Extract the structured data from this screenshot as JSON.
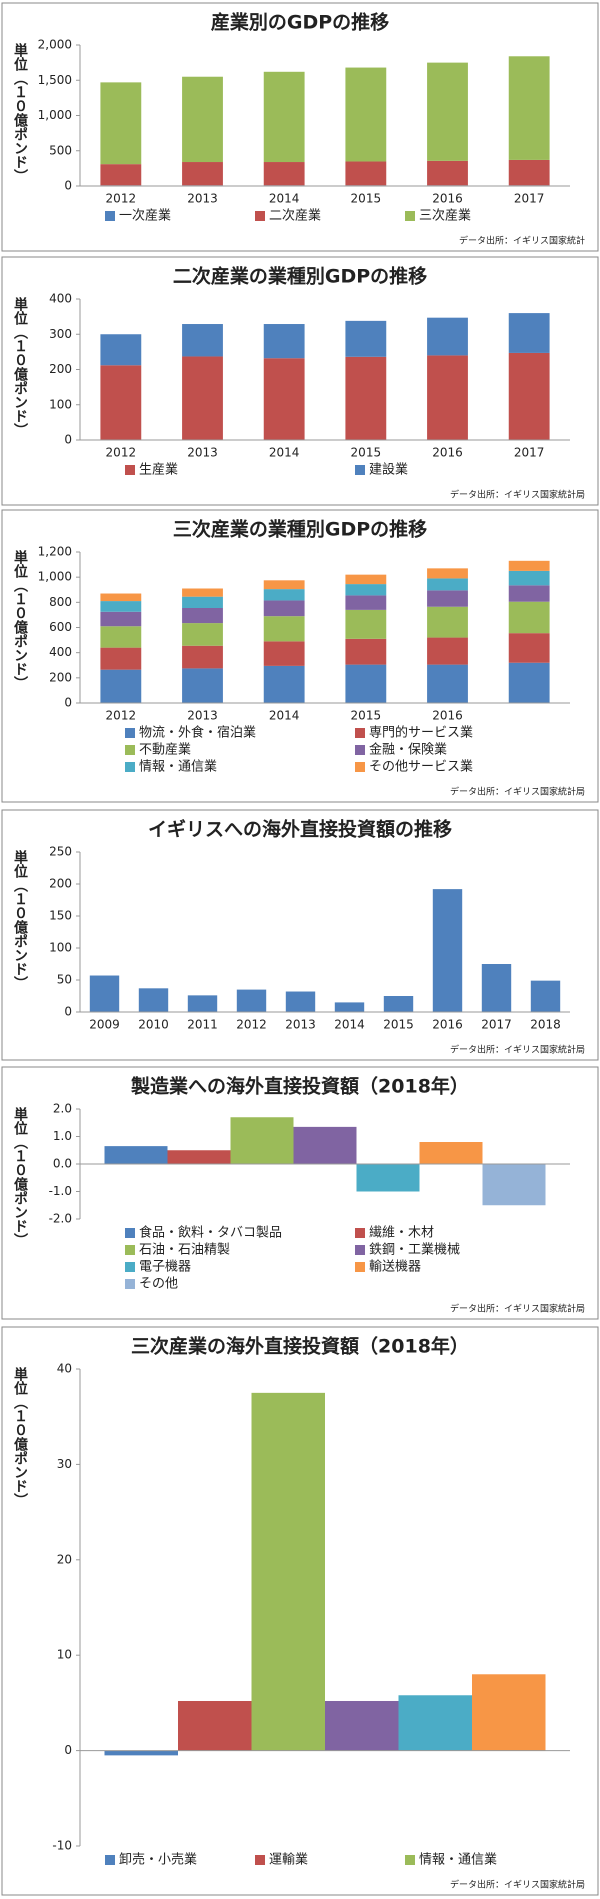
{
  "chart_data": [
    {
      "type": "bar",
      "stacked": true,
      "title": "産業別のGDPの推移",
      "y_label": "単位（１０億ポンド）",
      "source": "データ出所：イギリス国家統計",
      "categories": [
        "2012",
        "2013",
        "2014",
        "2015",
        "2016",
        "2017"
      ],
      "series": [
        {
          "name": "一次産業",
          "color": "#4f81bd",
          "values": [
            10,
            10,
            10,
            10,
            10,
            10
          ]
        },
        {
          "name": "二次産業",
          "color": "#c0504d",
          "values": [
            300,
            330,
            330,
            338,
            347,
            360
          ]
        },
        {
          "name": "三次産業",
          "color": "#9bbb59",
          "values": [
            1160,
            1210,
            1280,
            1332,
            1393,
            1470
          ]
        }
      ],
      "ylim": [
        0,
        2000
      ],
      "yticks": [
        0,
        500,
        {
          "value": 1000,
          "label": "1,000"
        },
        {
          "value": 1500,
          "label": "1,500"
        },
        {
          "value": 2000,
          "label": "2,000"
        }
      ],
      "grid": false,
      "legend": "bottom"
    },
    {
      "type": "bar",
      "stacked": true,
      "title": "二次産業の業種別GDPの推移",
      "y_label": "単位（１０億ポンド）",
      "source": "データ出所：イギリス国家統計局",
      "categories": [
        "2012",
        "2013",
        "2014",
        "2015",
        "2016",
        "2017"
      ],
      "series": [
        {
          "name": "生産業",
          "color": "#c0504d",
          "values": [
            212,
            237,
            232,
            236,
            240,
            247
          ]
        },
        {
          "name": "建設業",
          "color": "#4f81bd",
          "values": [
            88,
            92,
            97,
            102,
            107,
            113
          ]
        }
      ],
      "ylim": [
        0,
        400
      ],
      "yticks": [
        0,
        100,
        200,
        300,
        400
      ],
      "grid": false,
      "legend": "bottom"
    },
    {
      "type": "bar",
      "stacked": true,
      "title": "三次産業の業種別GDPの推移",
      "y_label": "単位（１０億ポンド）",
      "source": "データ出所：イギリス国家統計局",
      "categories": [
        "2012",
        "2013",
        "2014",
        "2015",
        "2016",
        null
      ],
      "series": [
        {
          "name": "物流・外食・宿泊業",
          "color": "#4f81bd",
          "values": [
            265,
            275,
            295,
            305,
            305,
            320
          ]
        },
        {
          "name": "専門的サービス業",
          "color": "#c0504d",
          "values": [
            175,
            180,
            195,
            205,
            215,
            235
          ]
        },
        {
          "name": "不動産業",
          "color": "#9bbb59",
          "values": [
            170,
            180,
            200,
            230,
            245,
            250
          ]
        },
        {
          "name": "金融・保険業",
          "color": "#8064a2",
          "values": [
            115,
            120,
            125,
            115,
            130,
            130
          ]
        },
        {
          "name": "情報・通信業",
          "color": "#4bacc6",
          "values": [
            85,
            90,
            90,
            90,
            95,
            115
          ]
        },
        {
          "name": "その他サービス業",
          "color": "#f79646",
          "values": [
            60,
            65,
            70,
            75,
            80,
            80
          ]
        }
      ],
      "ylim": [
        0,
        1200
      ],
      "yticks": [
        0,
        200,
        400,
        600,
        800,
        {
          "value": 1000,
          "label": "1,000"
        },
        {
          "value": 1200,
          "label": "1,200"
        }
      ],
      "grid": false,
      "legend": "bottom"
    },
    {
      "type": "bar",
      "title": "イギリスへの海外直接投資額の推移",
      "y_label": "単位（１０億ポンド）",
      "source": "データ出所：イギリス国家統計局",
      "categories": [
        "2009",
        "2010",
        "2011",
        "2012",
        "2013",
        "2014",
        "2015",
        "2016",
        "2017",
        "2018"
      ],
      "values": [
        57,
        37,
        26,
        35,
        32,
        15,
        25,
        192,
        75,
        49
      ],
      "color": "#4f81bd",
      "ylim": [
        0,
        250
      ],
      "yticks": [
        0,
        50,
        100,
        150,
        200,
        250
      ],
      "grid": false
    },
    {
      "type": "bar",
      "grouped": true,
      "title": "製造業への海外直接投資額（2018年）",
      "y_label": "単位（１０億ポンド）",
      "source": "データ出所：イギリス国家統計局",
      "categories": [
        null
      ],
      "series": [
        {
          "name": "食品・飲料・タバコ製品",
          "color": "#4f81bd",
          "values": [
            0.65
          ]
        },
        {
          "name": "繊維・木材",
          "color": "#c0504d",
          "values": [
            0.5
          ]
        },
        {
          "name": "石油・石油精製",
          "color": "#9bbb59",
          "values": [
            1.7
          ]
        },
        {
          "name": "鉄鋼・工業機械",
          "color": "#8064a2",
          "values": [
            1.35
          ]
        },
        {
          "name": "電子機器",
          "color": "#4bacc6",
          "values": [
            -1.0
          ]
        },
        {
          "name": "輸送機器",
          "color": "#f79646",
          "values": [
            0.8
          ]
        },
        {
          "name": "その他",
          "color": "#95b3d7",
          "values": [
            -1.5
          ]
        }
      ],
      "ylim": [
        -2,
        2
      ],
      "yticks": [
        {
          "value": 2,
          "label": "2.0"
        },
        {
          "value": 1,
          "label": "1.0"
        },
        {
          "value": 0,
          "label": "0.0"
        },
        {
          "value": -1,
          "label": "-1.0"
        },
        {
          "value": -2,
          "label": "-2.0"
        }
      ],
      "negative_tick_color": "#c00000",
      "grid": false,
      "legend": "bottom"
    },
    {
      "type": "bar",
      "grouped": true,
      "title": "三次産業の海外直接投資額（2018年）",
      "y_label": "単位（１０億ポンド）",
      "source": "データ出所：イギリス国家統計局",
      "categories": [
        null
      ],
      "series": [
        {
          "name": "卸売・小売業",
          "color": "#4f81bd",
          "values": [
            -0.5
          ]
        },
        {
          "name": "運輸業",
          "color": "#c0504d",
          "values": [
            5.2
          ]
        },
        {
          "name": "情報・通信業",
          "color": "#9bbb59",
          "values": [
            37.5
          ]
        },
        {
          "name": null,
          "color": "#8064a2",
          "values": [
            5.2
          ]
        },
        {
          "name": null,
          "color": "#4bacc6",
          "values": [
            5.8
          ]
        },
        {
          "name": null,
          "color": "#f79646",
          "values": [
            8.0
          ]
        }
      ],
      "ylim": [
        -10,
        40
      ],
      "yticks": [
        -10,
        0,
        10,
        20,
        30,
        40
      ],
      "negative_tick_color": "#c00000",
      "grid": false,
      "legend": "bottom"
    }
  ]
}
